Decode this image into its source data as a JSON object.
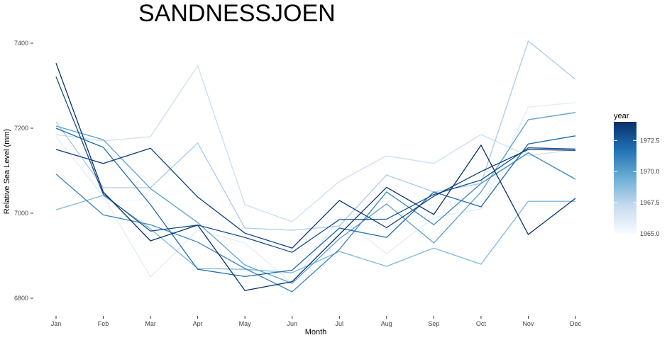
{
  "chart_data": {
    "type": "line",
    "title": "SANDNESSJOEN",
    "xlabel": "Month",
    "ylabel": "Relative Sea Level (mm)",
    "categories": [
      "Jan",
      "Feb",
      "Mar",
      "Apr",
      "May",
      "Jun",
      "Jul",
      "Aug",
      "Sep",
      "Oct",
      "Nov",
      "Dec"
    ],
    "ylim": [
      6770,
      7430
    ],
    "yticks": [
      6800,
      7000,
      7200,
      7400
    ],
    "grid": false,
    "legend": {
      "title": "year",
      "type": "colorbar",
      "placement": "right",
      "min": 1965.0,
      "max": 1974.0,
      "ticks": [
        "1965.0",
        "1967.5",
        "1970.0",
        "1972.5"
      ],
      "tick_values": [
        1965.0,
        1967.5,
        1970.0,
        1972.5
      ],
      "low_color": "#f7fbff",
      "high_color": "#08306b"
    },
    "series": [
      {
        "year": 1965,
        "values": [
          7215,
          7030,
          7030,
          7062,
          6880,
          6790,
          6975,
          6960,
          7020,
          7040,
          7150,
          7250
        ]
      },
      {
        "year": 1966,
        "values": [
          7180,
          7040,
          6850,
          6960,
          6930,
          6835,
          6990,
          6905,
          6990,
          7010,
          7250,
          7260
        ]
      },
      {
        "year": 1967,
        "values": [
          7185,
          7170,
          7180,
          7347,
          7020,
          6980,
          7075,
          7135,
          7117,
          7185,
          7135,
          7150
        ]
      },
      {
        "year": 1968,
        "values": [
          7215,
          7060,
          7060,
          7165,
          6965,
          6960,
          6970,
          7090,
          7050,
          7070,
          7405,
          7315
        ]
      },
      {
        "year": 1969,
        "values": [
          7008,
          7042,
          6963,
          6870,
          6868,
          6860,
          6910,
          6875,
          6918,
          6880,
          7028,
          7028
        ]
      },
      {
        "year": 1970,
        "values": [
          7205,
          7173,
          7058,
          6978,
          6878,
          6835,
          6940,
          7022,
          6930,
          7050,
          7220,
          7237
        ]
      },
      {
        "year": 1971,
        "values": [
          7092,
          6996,
          6973,
          6932,
          6870,
          6815,
          6915,
          7050,
          6973,
          7070,
          7142,
          7080
        ]
      },
      {
        "year": 1972,
        "values": [
          7200,
          7155,
          7020,
          6868,
          6851,
          6866,
          6965,
          6943,
          7050,
          7015,
          7163,
          7182
        ]
      },
      {
        "year": 1973,
        "values": [
          7321,
          7045,
          6958,
          6972,
          6943,
          6908,
          6985,
          6986,
          7044,
          7078,
          7154,
          7151
        ]
      },
      {
        "year": 1973.5,
        "values": [
          7150,
          7117,
          7153,
          7038,
          6953,
          6918,
          7030,
          6966,
          7040,
          7098,
          7150,
          7148
        ]
      },
      {
        "year": 1974,
        "values": [
          7353,
          7050,
          6935,
          6972,
          6818,
          6839,
          6950,
          7061,
          6997,
          7160,
          6950,
          7035
        ]
      }
    ]
  }
}
